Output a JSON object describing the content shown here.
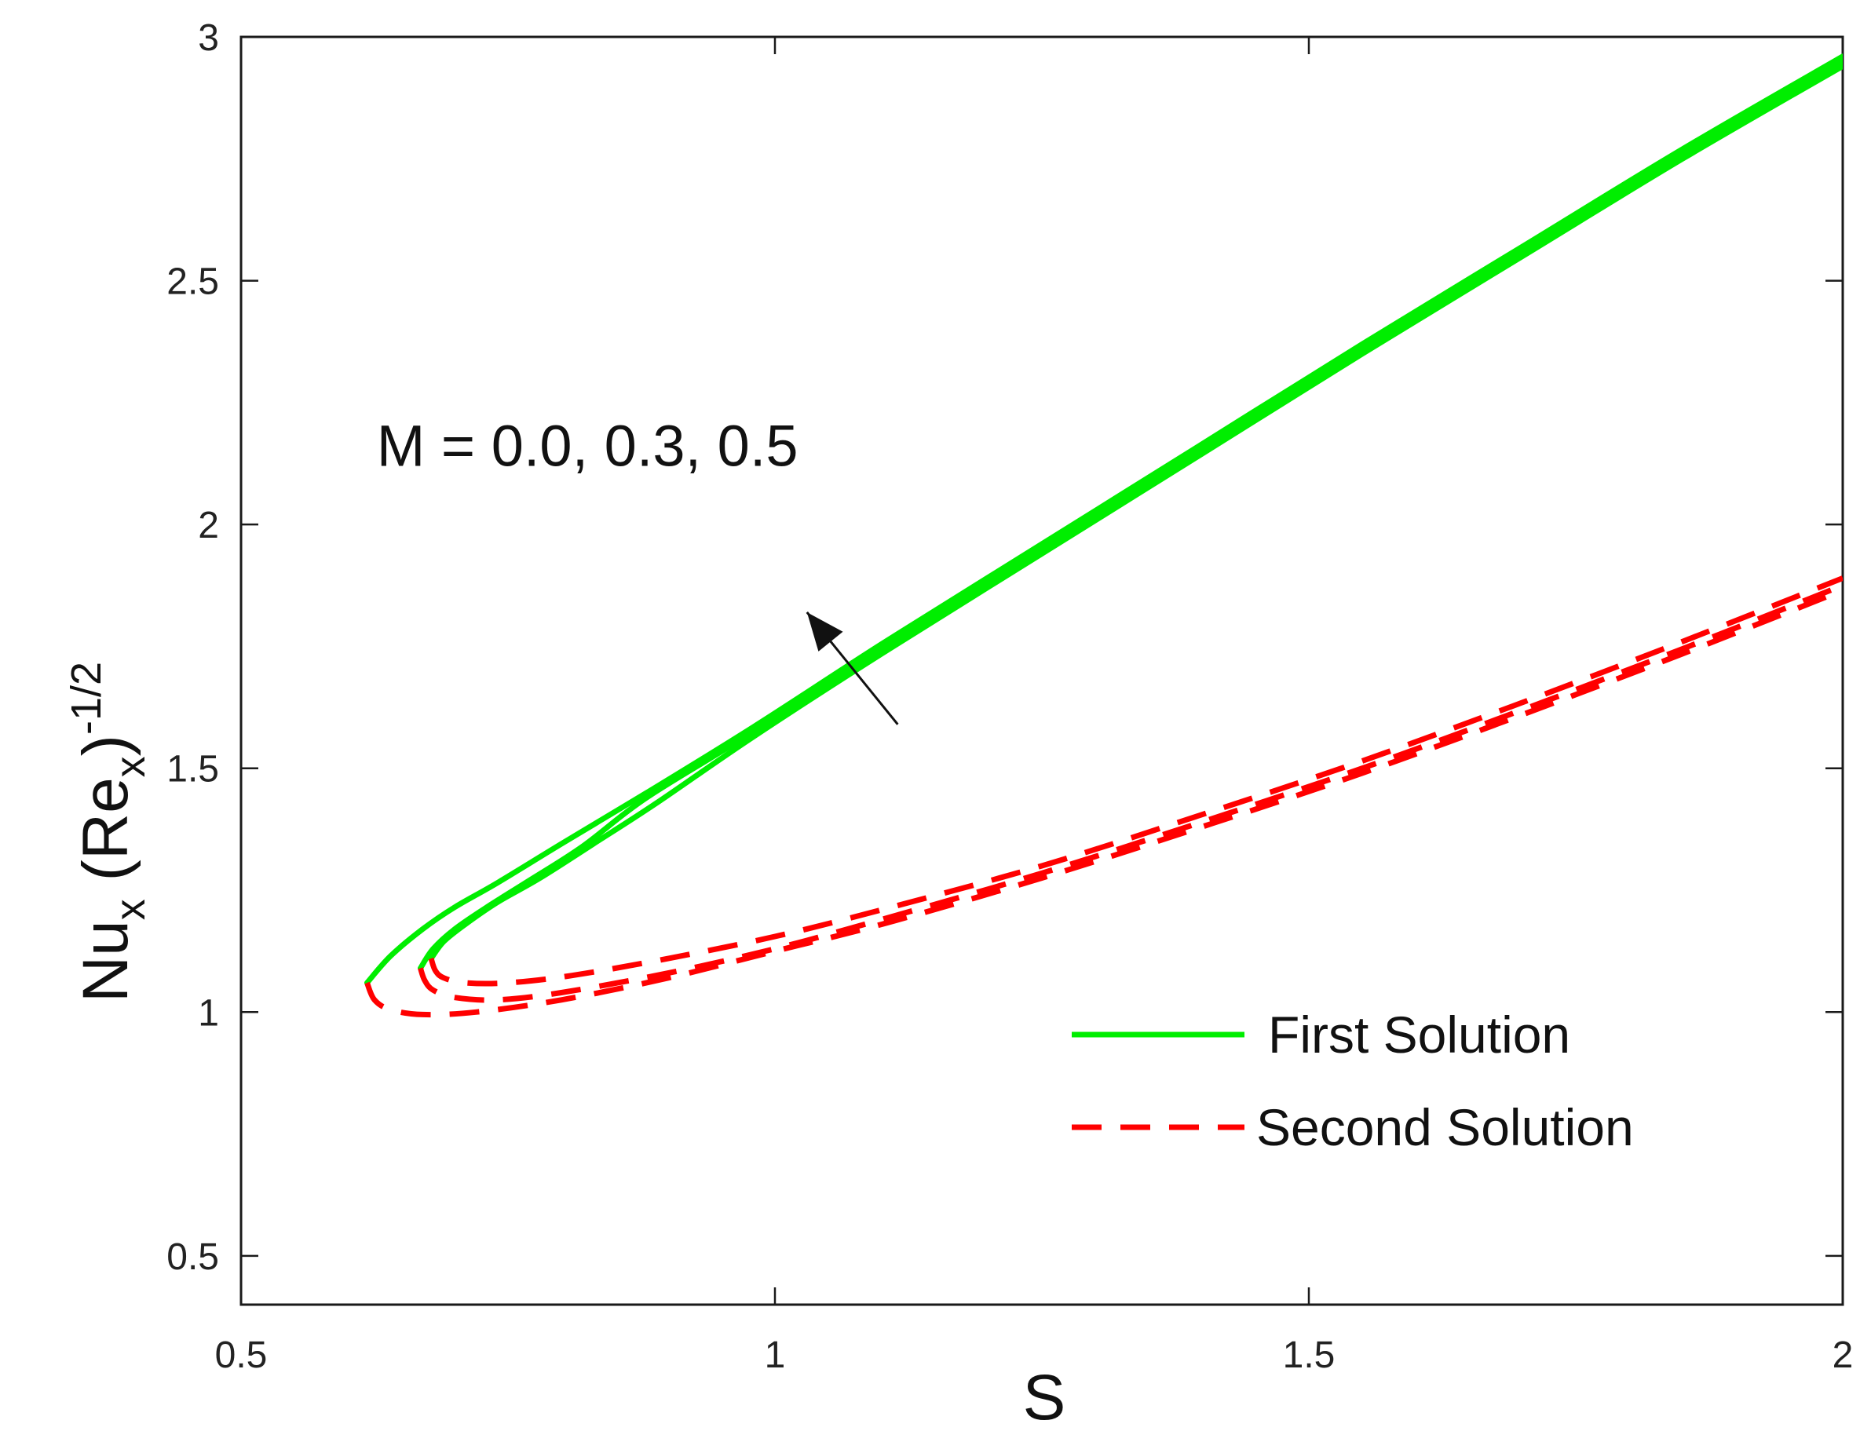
{
  "chart_data": {
    "type": "line",
    "title": "",
    "xlabel": "S",
    "ylabel": {
      "base": "Nu",
      "base_sub": "x",
      "paren_open": " (Re",
      "paren_sub": "x",
      "paren_close": ")",
      "sup": "-1/2"
    },
    "xlim": [
      0.5,
      2
    ],
    "ylim": [
      0.4,
      3
    ],
    "xticks": [
      "0.5",
      "1",
      "1.5",
      "2"
    ],
    "yticks": [
      "0.5",
      "1",
      "1.5",
      "2",
      "2.5",
      "3"
    ],
    "grid": false,
    "legend_position": "lower-right",
    "annotation": {
      "text": "M = 0.0, 0.3, 0.5",
      "arrow_from": [
        1.115,
        1.59
      ],
      "arrow_to": [
        1.03,
        1.82
      ]
    },
    "series": [
      {
        "name": "First Solution",
        "style": "solid",
        "color": "#00ee00",
        "curves": [
          {
            "x": [
              0.618,
              0.64,
              0.67,
              0.7,
              0.74,
              0.8,
              0.88,
              0.98,
              1.1,
              1.25,
              1.4,
              1.55,
              1.7,
              1.85,
              2.0
            ],
            "y": [
              1.06,
              1.115,
              1.17,
              1.215,
              1.265,
              1.345,
              1.45,
              1.585,
              1.755,
              1.96,
              2.165,
              2.37,
              2.57,
              2.77,
              2.96
            ]
          },
          {
            "x": [
              0.668,
              0.68,
              0.7,
              0.73,
              0.77,
              0.82,
              0.88,
              0.98,
              1.1,
              1.25,
              1.4,
              1.55,
              1.7,
              1.85,
              2.0
            ],
            "y": [
              1.09,
              1.13,
              1.17,
              1.215,
              1.27,
              1.34,
              1.44,
              1.575,
              1.745,
              1.95,
              2.155,
              2.36,
              2.56,
              2.76,
              2.95
            ]
          },
          {
            "x": [
              0.678,
              0.69,
              0.71,
              0.74,
              0.78,
              0.83,
              0.89,
              0.98,
              1.1,
              1.25,
              1.4,
              1.55,
              1.7,
              1.85,
              2.0
            ],
            "y": [
              1.11,
              1.145,
              1.18,
              1.225,
              1.275,
              1.345,
              1.43,
              1.565,
              1.735,
              1.94,
              2.145,
              2.35,
              2.55,
              2.75,
              2.94
            ]
          }
        ]
      },
      {
        "name": "Second Solution",
        "style": "dashed",
        "color": "#ff0000",
        "curves": [
          {
            "x": [
              0.618,
              0.625,
              0.64,
              0.67,
              0.72,
              0.8,
              0.9,
              1.0,
              1.1,
              1.25,
              1.4,
              1.55,
              1.7,
              1.85,
              2.0
            ],
            "y": [
              1.06,
              1.025,
              1.005,
              0.995,
              1.0,
              1.025,
              1.07,
              1.125,
              1.18,
              1.275,
              1.38,
              1.49,
              1.61,
              1.735,
              1.865
            ]
          },
          {
            "x": [
              0.668,
              0.672,
              0.68,
              0.7,
              0.74,
              0.8,
              0.9,
              1.0,
              1.1,
              1.25,
              1.4,
              1.55,
              1.7,
              1.85,
              2.0
            ],
            "y": [
              1.09,
              1.065,
              1.045,
              1.03,
              1.025,
              1.04,
              1.08,
              1.13,
              1.19,
              1.285,
              1.39,
              1.5,
              1.62,
              1.745,
              1.875
            ]
          },
          {
            "x": [
              0.678,
              0.682,
              0.69,
              0.71,
              0.75,
              0.81,
              0.9,
              1.0,
              1.1,
              1.25,
              1.4,
              1.55,
              1.7,
              1.85,
              2.0
            ],
            "y": [
              1.11,
              1.085,
              1.07,
              1.06,
              1.06,
              1.075,
              1.11,
              1.155,
              1.21,
              1.3,
              1.405,
              1.515,
              1.635,
              1.76,
              1.89
            ]
          }
        ]
      }
    ]
  }
}
